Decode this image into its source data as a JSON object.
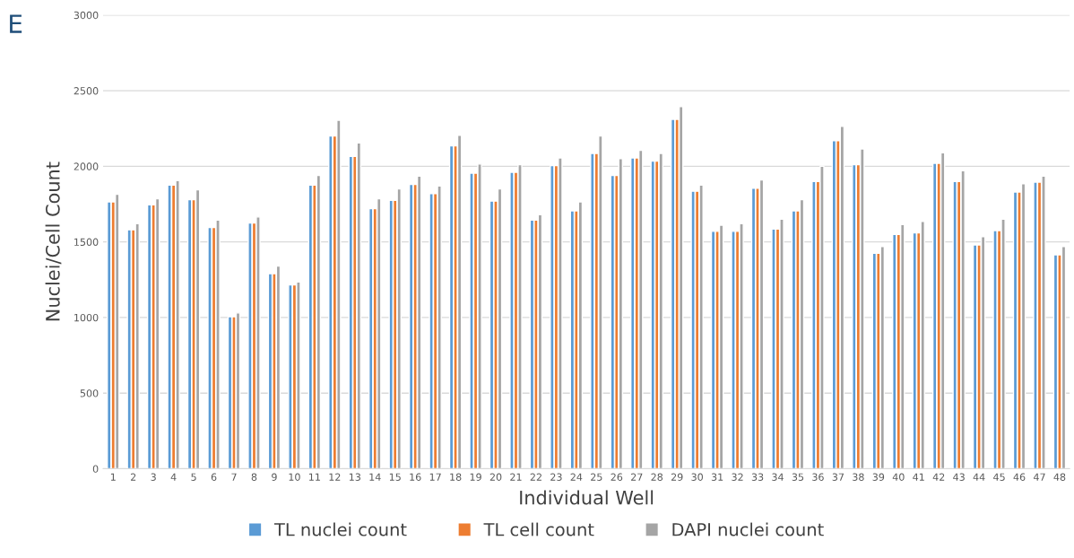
{
  "chart_data": {
    "type": "bar",
    "title": "E",
    "xlabel": "Individual Well",
    "ylabel": "Nuclei/Cell Count",
    "categories": [
      "1",
      "2",
      "3",
      "4",
      "5",
      "6",
      "7",
      "8",
      "9",
      "10",
      "11",
      "12",
      "13",
      "14",
      "15",
      "16",
      "17",
      "18",
      "19",
      "20",
      "21",
      "22",
      "23",
      "24",
      "25",
      "26",
      "27",
      "28",
      "29",
      "30",
      "31",
      "32",
      "33",
      "34",
      "35",
      "36",
      "37",
      "38",
      "39",
      "40",
      "41",
      "42",
      "43",
      "44",
      "45",
      "46",
      "47",
      "48"
    ],
    "series": [
      {
        "name": "TL nuclei count",
        "color": "#5b9bd5",
        "values": [
          1765,
          1580,
          1745,
          1875,
          1780,
          1595,
          1005,
          1625,
          1290,
          1215,
          1875,
          2200,
          2065,
          1720,
          1775,
          1880,
          1820,
          2135,
          1955,
          1770,
          1960,
          1645,
          2005,
          1705,
          2085,
          1940,
          2055,
          2035,
          2310,
          1835,
          1570,
          1570,
          1855,
          1585,
          1705,
          1900,
          2170,
          2010,
          1425,
          1550,
          1560,
          2020,
          1900,
          1480,
          1575,
          1830,
          1895,
          1415
        ]
      },
      {
        "name": "TL cell count",
        "color": "#ed7d31",
        "values": [
          1765,
          1580,
          1745,
          1875,
          1780,
          1595,
          1005,
          1625,
          1290,
          1215,
          1875,
          2200,
          2065,
          1720,
          1775,
          1880,
          1820,
          2135,
          1955,
          1770,
          1960,
          1645,
          2005,
          1705,
          2085,
          1940,
          2055,
          2035,
          2310,
          1835,
          1570,
          1570,
          1855,
          1585,
          1705,
          1900,
          2170,
          2010,
          1425,
          1550,
          1560,
          2020,
          1900,
          1480,
          1575,
          1830,
          1895,
          1415
        ]
      },
      {
        "name": "DAPI nuclei count",
        "color": "#a5a5a5",
        "values": [
          1815,
          1620,
          1785,
          1905,
          1845,
          1645,
          1030,
          1665,
          1340,
          1235,
          1940,
          2305,
          2155,
          1785,
          1850,
          1935,
          1870,
          2205,
          2015,
          1850,
          2010,
          1680,
          2055,
          1765,
          2200,
          2050,
          2105,
          2085,
          2395,
          1875,
          1610,
          1620,
          1910,
          1650,
          1780,
          2000,
          2265,
          2115,
          1470,
          1615,
          1635,
          2090,
          1970,
          1535,
          1650,
          1885,
          1935,
          1470
        ]
      }
    ],
    "ylim": [
      0,
      3000
    ],
    "yticks": [
      0,
      500,
      1000,
      1500,
      2000,
      2500,
      3000
    ],
    "grid": "y",
    "legend": "bottom"
  }
}
